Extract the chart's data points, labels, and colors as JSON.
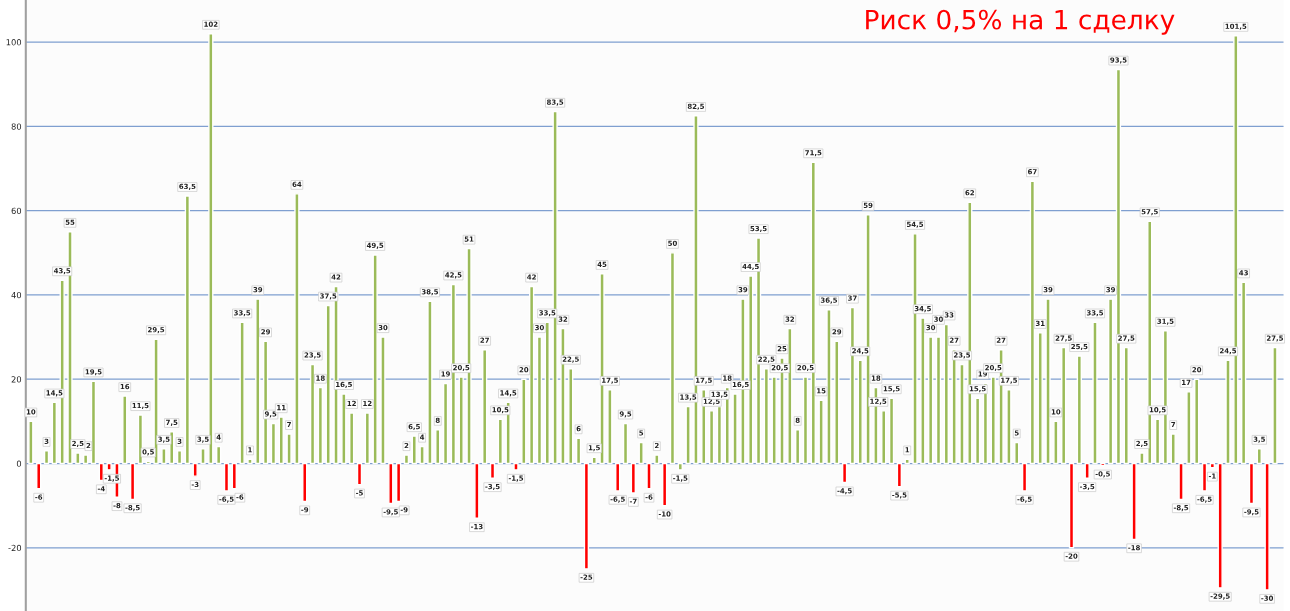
{
  "chart_data": {
    "type": "bar",
    "title": "Риск 0,5% на 1 сделку",
    "categories": [
      null,
      null,
      null,
      null,
      null,
      null,
      null,
      null,
      null,
      null,
      null,
      null,
      null,
      null,
      null,
      null,
      null,
      null,
      null,
      null,
      null,
      null,
      null,
      null,
      null,
      null,
      null,
      null,
      null,
      null,
      null,
      null,
      null,
      null,
      null,
      null,
      null,
      null,
      null,
      null,
      null,
      null,
      null,
      null,
      null,
      null,
      null,
      null,
      null,
      null,
      null,
      null,
      null,
      null,
      null,
      null,
      null,
      null,
      null,
      null,
      null,
      null,
      null,
      null,
      null,
      null,
      null,
      null,
      null,
      null,
      null,
      null,
      null,
      null,
      null,
      null,
      null,
      null,
      null,
      null,
      null,
      null,
      null,
      null,
      null,
      null,
      null,
      null,
      null,
      null,
      null,
      null,
      null,
      null,
      null,
      null,
      null,
      null,
      null,
      null,
      null,
      null,
      null,
      null,
      null,
      null,
      null,
      null,
      null,
      null,
      null,
      null,
      null,
      null,
      null,
      null,
      null,
      null,
      null,
      null,
      null,
      null,
      null,
      null,
      null,
      null,
      null,
      null,
      null,
      null,
      null,
      null,
      null,
      null,
      null,
      null,
      null,
      null,
      null,
      null,
      null,
      null,
      null,
      null,
      null,
      null,
      null,
      null,
      null,
      null,
      null,
      null,
      null,
      null,
      null,
      null,
      null,
      null,
      null,
      null
    ],
    "values": [
      10,
      -6,
      3,
      14.5,
      43.5,
      55,
      2.5,
      2,
      19.5,
      -4,
      -1.5,
      -8,
      16,
      -8.5,
      11.5,
      0.5,
      29.5,
      3.5,
      7.5,
      3,
      63.5,
      -3,
      3.5,
      102,
      4,
      -6.5,
      -6,
      33.5,
      1,
      39,
      29,
      9.5,
      11,
      7,
      64,
      -9,
      23.5,
      18,
      37.5,
      42,
      16.5,
      12,
      -5,
      12,
      49.5,
      30,
      -9.5,
      -9,
      2,
      6.5,
      4,
      38.5,
      8,
      19,
      42.5,
      20.5,
      51,
      -13,
      27,
      -3.5,
      10.5,
      14.5,
      -1.5,
      20,
      42,
      30,
      33.5,
      83.5,
      32,
      22.5,
      6,
      -25,
      1.5,
      45,
      17.5,
      -6.5,
      9.5,
      -7,
      5,
      -6,
      2,
      -10,
      50,
      -1.5,
      13.5,
      82.5,
      17.5,
      12.5,
      13.5,
      18,
      16.5,
      39,
      44.5,
      53.5,
      22.5,
      20.5,
      25,
      32,
      8,
      20.5,
      71.5,
      15,
      36.5,
      29,
      -4.5,
      37,
      24.5,
      59,
      18,
      12.5,
      15.5,
      -5.5,
      1,
      54.5,
      34.5,
      30,
      30,
      33,
      27,
      23.5,
      62,
      15.5,
      19,
      20.5,
      27,
      17.5,
      5,
      -6.5,
      67,
      31,
      39,
      10,
      27.5,
      -20,
      25.5,
      -3.5,
      33.5,
      -0.5,
      39,
      93.5,
      27.5,
      -18,
      2.5,
      57.5,
      10.5,
      31.5,
      7,
      -8.5,
      17,
      20,
      -6.5,
      -1,
      -29.5,
      24.5,
      101.5,
      43,
      -9.5,
      3.5,
      -30,
      27.5
    ],
    "value_labels": [
      "10",
      "-6",
      "3",
      "14,5",
      "43,5",
      "55",
      "2,5",
      "2",
      "19,5",
      "-4",
      "-1,5",
      "-8",
      "16",
      "-8,5",
      "11,5",
      "0,5",
      "29,5",
      "3,5",
      "7,5",
      "3",
      "63,5",
      "-3",
      "3,5",
      "102",
      "4",
      "-6,5",
      "-6",
      "33,5",
      "1",
      "39",
      "29",
      "9,5",
      "11",
      "7",
      "64",
      "-9",
      "23,5",
      "18",
      "37,5",
      "42",
      "16,5",
      "12",
      "-5",
      "12",
      "49,5",
      "30",
      "-9,5",
      "-9",
      "2",
      "6,5",
      "4",
      "38,5",
      "8",
      "19",
      "42,5",
      "20,5",
      "51",
      "-13",
      "27",
      "-3,5",
      "10,5",
      "14,5",
      "-1,5",
      "20",
      "42",
      "30",
      "33,5",
      "83,5",
      "32",
      "22,5",
      "6",
      "-25",
      "1,5",
      "45",
      "17,5",
      "-6,5",
      "9,5",
      "-7",
      "5",
      "-6",
      "2",
      "-10",
      "50",
      "-1,5",
      "13,5",
      "82,5",
      "17,5",
      "12,5",
      "13,5",
      "18",
      "16,5",
      "39",
      "44,5",
      "53,5",
      "22,5",
      "20,5",
      "25",
      "32",
      "8",
      "20,5",
      "71,5",
      "15",
      "36,5",
      "29",
      "-4,5",
      "37",
      "24,5",
      "59",
      "18",
      "12,5",
      "15,5",
      "-5,5",
      "1",
      "54,5",
      "34,5",
      "30",
      "30",
      "33",
      "27",
      "23,5",
      "62",
      "15,5",
      "19",
      "20,5",
      "27",
      "17,5",
      "5",
      "-6,5",
      "67",
      "31",
      "39",
      "10",
      "27,5",
      "-20",
      "25,5",
      "-3,5",
      "33,5",
      "-0,5",
      "39",
      "93,5",
      "27,5",
      "-18",
      "2,5",
      "57,5",
      "10,5",
      "31,5",
      "7",
      "-8,5",
      "17",
      "20",
      "-6,5",
      "-1",
      "-29,5",
      "24,5",
      "101,5",
      "43",
      "-9,5",
      "3,5",
      "-30",
      "27,5"
    ],
    "colors": [
      "#9bbb59",
      "#ff0000",
      "#9bbb59",
      "#9bbb59",
      "#9bbb59",
      "#9bbb59",
      "#9bbb59",
      "#9bbb59",
      "#9bbb59",
      "#ff0000",
      "#ff0000",
      "#ff0000",
      "#9bbb59",
      "#ff0000",
      "#9bbb59",
      "#9bbb59",
      "#9bbb59",
      "#9bbb59",
      "#9bbb59",
      "#9bbb59",
      "#9bbb59",
      "#ff0000",
      "#9bbb59",
      "#9bbb59",
      "#9bbb59",
      "#ff0000",
      "#ff0000",
      "#9bbb59",
      "#9bbb59",
      "#9bbb59",
      "#9bbb59",
      "#9bbb59",
      "#9bbb59",
      "#9bbb59",
      "#9bbb59",
      "#ff0000",
      "#9bbb59",
      "#9bbb59",
      "#9bbb59",
      "#9bbb59",
      "#9bbb59",
      "#9bbb59",
      "#ff0000",
      "#9bbb59",
      "#9bbb59",
      "#9bbb59",
      "#ff0000",
      "#ff0000",
      "#9bbb59",
      "#9bbb59",
      "#9bbb59",
      "#9bbb59",
      "#9bbb59",
      "#9bbb59",
      "#9bbb59",
      "#9bbb59",
      "#9bbb59",
      "#ff0000",
      "#9bbb59",
      "#ff0000",
      "#9bbb59",
      "#9bbb59",
      "#ff0000",
      "#9bbb59",
      "#9bbb59",
      "#9bbb59",
      "#9bbb59",
      "#9bbb59",
      "#9bbb59",
      "#9bbb59",
      "#9bbb59",
      "#ff0000",
      "#9bbb59",
      "#9bbb59",
      "#9bbb59",
      "#ff0000",
      "#9bbb59",
      "#ff0000",
      "#9bbb59",
      "#ff0000",
      "#9bbb59",
      "#ff0000",
      "#9bbb59",
      "#9bbb59",
      "#9bbb59",
      "#9bbb59",
      "#9bbb59",
      "#9bbb59",
      "#9bbb59",
      "#9bbb59",
      "#9bbb59",
      "#9bbb59",
      "#9bbb59",
      "#9bbb59",
      "#9bbb59",
      "#9bbb59",
      "#9bbb59",
      "#9bbb59",
      "#9bbb59",
      "#9bbb59",
      "#9bbb59",
      "#9bbb59",
      "#9bbb59",
      "#9bbb59",
      "#ff0000",
      "#9bbb59",
      "#9bbb59",
      "#9bbb59",
      "#9bbb59",
      "#9bbb59",
      "#9bbb59",
      "#ff0000",
      "#9bbb59",
      "#9bbb59",
      "#9bbb59",
      "#9bbb59",
      "#9bbb59",
      "#9bbb59",
      "#9bbb59",
      "#9bbb59",
      "#9bbb59",
      "#9bbb59",
      "#9bbb59",
      "#9bbb59",
      "#9bbb59",
      "#9bbb59",
      "#9bbb59",
      "#ff0000",
      "#9bbb59",
      "#9bbb59",
      "#9bbb59",
      "#9bbb59",
      "#9bbb59",
      "#ff0000",
      "#9bbb59",
      "#ff0000",
      "#9bbb59",
      "#ff0000",
      "#9bbb59",
      "#9bbb59",
      "#9bbb59",
      "#ff0000",
      "#9bbb59",
      "#9bbb59",
      "#9bbb59",
      "#9bbb59",
      "#9bbb59",
      "#ff0000",
      "#9bbb59",
      "#9bbb59",
      "#ff0000",
      "#ff0000",
      "#ff0000",
      "#9bbb59",
      "#9bbb59",
      "#9bbb59",
      "#ff0000",
      "#9bbb59",
      "#ff0000",
      "#9bbb59"
    ],
    "ylim": [
      -35,
      110
    ],
    "yticks": [
      -20,
      0,
      20,
      40,
      60,
      80,
      100
    ],
    "grid": "y"
  }
}
